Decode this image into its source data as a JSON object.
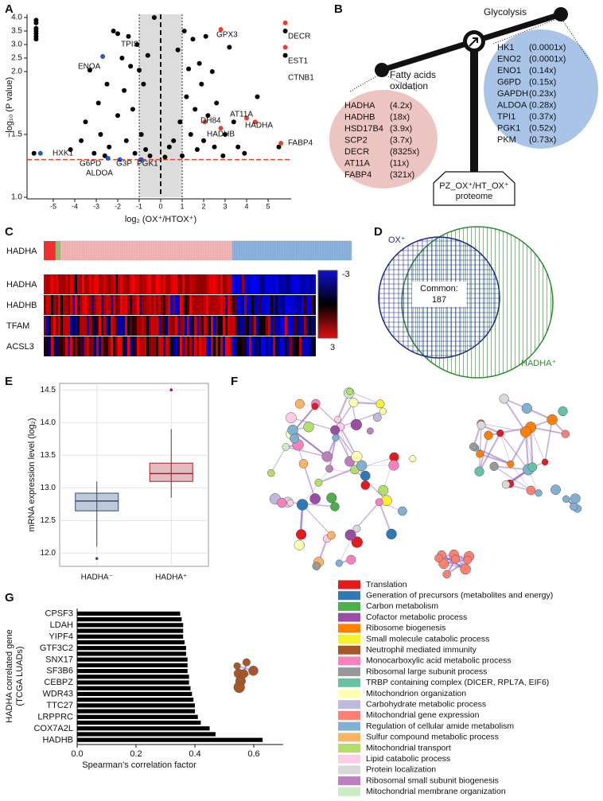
{
  "panel_labels": [
    "A",
    "B",
    "C",
    "D",
    "E",
    "F",
    "G"
  ],
  "chart_data": [
    {
      "type": "scatter",
      "xlabel": "log₂ (OX⁺/HTOX⁺)",
      "ylabel": "−log₁₀ (P value)",
      "xlim": [
        -6,
        6
      ],
      "ylim": [
        1,
        4
      ],
      "xticks": [
        -5,
        -4,
        -3,
        -2,
        -1,
        0,
        1,
        2,
        3,
        4,
        5
      ],
      "yticks": [
        {
          "value": 1,
          "label": "1.0"
        },
        1.5,
        {
          "value": 2,
          "label": "2.0"
        },
        2.5,
        {
          "value": 3,
          "label": "3.0"
        },
        3.5,
        {
          "value": 4,
          "label": "4.0"
        }
      ],
      "shade": [
        -1,
        1
      ],
      "vline": 0,
      "hline": 1.3,
      "series": [
        {
          "color": "#000000",
          "x": [
            -5.8,
            -5.8,
            -5.8,
            -5.8,
            -5.8,
            -5.8,
            -5.8,
            -5.9,
            -3.7,
            -3.5,
            -3.3,
            -3.1,
            -2.9,
            -2.8,
            -2.5,
            -2.4,
            -2.2,
            -2.0,
            -2.0,
            -1.8,
            -1.7,
            -1.6,
            -1.5,
            -1.4,
            -1.3,
            -1.2,
            -1.1,
            -1.0,
            -0.9,
            -0.8,
            -0.7,
            -0.6,
            -0.5,
            -0.3,
            0.2,
            0.4,
            0.6,
            0.8,
            0.9,
            1.1,
            1.2,
            1.3,
            1.4,
            1.5,
            1.6,
            1.7,
            1.8,
            1.9,
            2.0,
            2.1,
            2.2,
            2.4,
            2.5,
            2.6,
            3.0,
            3.2,
            3.4,
            3.6,
            3.9,
            4.5,
            5.5,
            5.8,
            5.8,
            -4.2,
            -2.6,
            1.0,
            2.9
          ],
          "y": [
            3.9,
            3.8,
            3.6,
            3.5,
            3.4,
            3.3,
            3.2,
            1.35,
            1.45,
            1.6,
            2.05,
            1.35,
            1.75,
            1.5,
            1.9,
            1.4,
            3.5,
            3.4,
            1.65,
            2.5,
            1.85,
            1.45,
            3.3,
            2.2,
            1.7,
            1.35,
            3.0,
            2.05,
            1.5,
            1.9,
            1.38,
            2.6,
            1.33,
            4.0,
            1.32,
            1.4,
            1.45,
            2.8,
            1.6,
            3.5,
            1.8,
            2.1,
            1.5,
            3.2,
            1.7,
            1.38,
            2.3,
            1.9,
            1.45,
            3.3,
            1.65,
            2.0,
            1.4,
            1.75,
            1.5,
            2.9,
            1.6,
            1.4,
            1.35,
            1.8,
            1.4,
            3.5,
            2.6,
            1.38,
            1.33,
            1.33,
            1.33
          ]
        },
        {
          "color": "#2a55c8",
          "x": [
            -2.7,
            -5.6,
            -2.45,
            -1.9,
            -0.9
          ],
          "y": [
            2.56,
            1.35,
            1.31,
            1.3,
            1.3
          ]
        },
        {
          "color": "#e8432a",
          "x": [
            2.8,
            5.8,
            5.8,
            4.0,
            4.4,
            2.8,
            2.05,
            5.6
          ],
          "y": [
            3.56,
            3.8,
            2.9,
            1.63,
            1.6,
            1.55,
            1.6,
            1.43
          ]
        }
      ],
      "annotations": [
        "ENOA",
        "TPIS",
        "HXK1",
        "G6PD",
        "ALDOA",
        "G3P",
        "PGK1",
        "GPX3",
        "DECR",
        "EST1",
        "CTNB1",
        "AT11A",
        "HADHA",
        "DH84",
        "HADHB",
        "FABP4"
      ]
    },
    {
      "type": "box",
      "ylabel": "mRNA expression level (log₂)",
      "categories": [
        "HADHA⁻",
        "HADHA⁺"
      ],
      "colors": [
        "#2f4b7c",
        "#a3202a"
      ],
      "ylim": [
        11.8,
        14.6
      ],
      "yticks": [
        {
          "value": 12,
          "label": "12.0"
        },
        12.5,
        {
          "value": 13,
          "label": "13.0"
        },
        13.5,
        {
          "value": 14,
          "label": "14.0"
        },
        14.5
      ],
      "boxes": [
        {
          "min": 12.1,
          "q1": 12.65,
          "median": 12.8,
          "q3": 12.92,
          "max": 13.1,
          "outliers": [
            11.92
          ]
        },
        {
          "min": 12.85,
          "q1": 13.1,
          "median": 13.22,
          "q3": 13.38,
          "max": 13.9,
          "outliers": [
            14.5
          ]
        }
      ]
    },
    {
      "type": "bar",
      "orientation": "horizontal",
      "xlabel": "Spearman’s correlation factor",
      "ylabel": [
        "HADHA correlated gene",
        "(TCGA LUADs)"
      ],
      "color": "#000000",
      "categories": [
        "CPSF3",
        null,
        "LDAH",
        null,
        "YIPF4",
        null,
        "GTF3C2",
        null,
        "SNX17",
        null,
        "SF3B6",
        null,
        "CEBPZ",
        null,
        "WDR43",
        null,
        "TTC27",
        null,
        "LRPPRC",
        null,
        "COX7A2L",
        null,
        "HADHB"
      ],
      "values": [
        0.35,
        0.355,
        0.36,
        0.36,
        0.36,
        0.365,
        0.37,
        0.37,
        0.375,
        0.375,
        0.375,
        0.38,
        0.38,
        0.385,
        0.39,
        0.395,
        0.4,
        0.4,
        0.41,
        0.42,
        0.45,
        0.47,
        0.63
      ],
      "xlim": [
        0,
        0.7
      ],
      "xticks": [
        {
          "value": 0,
          "label": "0.0"
        },
        0.2,
        0.4,
        0.6
      ]
    }
  ],
  "balance": {
    "left_title": [
      "Fatty acids",
      "oxidation"
    ],
    "left_genes": [
      [
        "HADHA",
        "(4.2x)"
      ],
      [
        "HADHB",
        "(18x)"
      ],
      [
        "HSD17B4",
        "(3.9x)"
      ],
      [
        "SCP2",
        "(3.7x)"
      ],
      [
        "DECR",
        "(8325x)"
      ],
      [
        "AT11A",
        "(11x)"
      ],
      [
        "FABP4",
        "(321x)"
      ]
    ],
    "right_title": "Glycolysis",
    "right_genes": [
      [
        "HK1",
        "(0.0001x)"
      ],
      [
        "ENO2",
        "(0.0001x)"
      ],
      [
        "ENO1",
        "(0.14x)"
      ],
      [
        "G6PD",
        "(0.15x)"
      ],
      [
        "GAPDH",
        "(0.23x)"
      ],
      [
        "ALDOA",
        "(0.28x)"
      ],
      [
        "TPI1",
        "(0.37x)"
      ],
      [
        "PGK1",
        "(0.52x)"
      ],
      [
        "PKM",
        "(0.73x)"
      ]
    ],
    "base": [
      "PZ_OX⁺/HT_OX⁺",
      "proteome"
    ]
  },
  "heatmap": {
    "top_label": "HADHA",
    "rows": [
      "HADHA",
      "HADHB",
      "TFAM",
      "ACSL3"
    ],
    "scale": [
      "-3",
      "3"
    ]
  },
  "venn": {
    "left": "OX⁺",
    "common": [
      "Common:",
      "187"
    ],
    "right": "HADHA⁺"
  },
  "network": {
    "legend": [
      {
        "name": "Translation",
        "color": "#e41a1c"
      },
      {
        "name": "Generation of precursors (metabolites and energy)",
        "color": "#2e7ab8"
      },
      {
        "name": "Carbon metabolism",
        "color": "#4daf4a"
      },
      {
        "name": "Cofactor metabolic process",
        "color": "#984ea3"
      },
      {
        "name": "Ribosome biogenesis",
        "color": "#ff7f00"
      },
      {
        "name": "Small molecule catabolic process",
        "color": "#f5f032"
      },
      {
        "name": "Neutrophil mediated immunity",
        "color": "#a65628"
      },
      {
        "name": "Monocarboxylic acid metabolic process",
        "color": "#f781bf"
      },
      {
        "name": "Ribosomal large subunit process",
        "color": "#999999"
      },
      {
        "name": "TRBP containing complex (DICER, RPL7A, EIF6)",
        "color": "#66c2a5"
      },
      {
        "name": "Mitochondrion organization",
        "color": "#ffffb3"
      },
      {
        "name": "Carbohydrate metabolic process",
        "color": "#bebada"
      },
      {
        "name": "Mitochondrial gene expression",
        "color": "#fb8072"
      },
      {
        "name": "Regulation of cellular amide metabolism",
        "color": "#80b1d3"
      },
      {
        "name": "Sulfur compound metabolic process",
        "color": "#fdb462"
      },
      {
        "name": "Mitochondrial transport",
        "color": "#b3de69"
      },
      {
        "name": "Lipid catabolic process",
        "color": "#fccde5"
      },
      {
        "name": "Protein localization",
        "color": "#d9d9d9"
      },
      {
        "name": "Ribosomal small subunit biogenesis",
        "color": "#bc80bd"
      },
      {
        "name": "Mitochondrial membrane organization",
        "color": "#ccebc5"
      }
    ]
  }
}
